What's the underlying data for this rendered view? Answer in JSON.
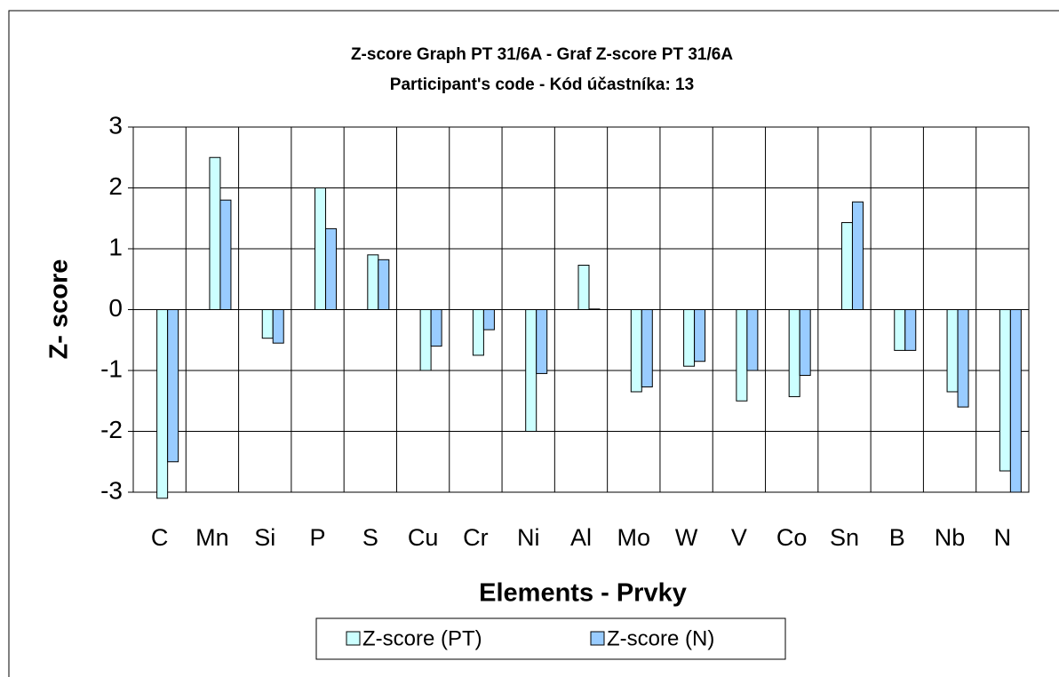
{
  "chart_data": {
    "type": "bar",
    "title": "Z-score Graph PT 31/6A - Graf Z-score PT 31/6A",
    "subtitle": "Participant's code - Kód účastníka:  13",
    "x_label": "Elements - Prvky",
    "y_label": "Z- score",
    "categories": [
      "C",
      "Mn",
      "Si",
      "P",
      "S",
      "Cu",
      "Cr",
      "Ni",
      "Al",
      "Mo",
      "W",
      "V",
      "Co",
      "Sn",
      "B",
      "Nb",
      "N"
    ],
    "series": [
      {
        "name": "Z-score (PT)",
        "color": "#ccffff",
        "values": [
          -3.1,
          2.5,
          -0.47,
          2.0,
          0.9,
          -1.0,
          -0.75,
          -2.0,
          0.73,
          -1.35,
          -0.93,
          -1.5,
          -1.43,
          1.43,
          -0.67,
          -1.35,
          -2.65
        ]
      },
      {
        "name": "Z-score (N)",
        "color": "#99ccff",
        "values": [
          -2.5,
          1.8,
          -0.55,
          1.33,
          0.82,
          -0.6,
          -0.33,
          -1.05,
          0.01,
          -1.27,
          -0.85,
          -1.0,
          -1.08,
          1.77,
          -0.67,
          -1.6,
          -3.0
        ]
      }
    ],
    "ylim": [
      -3,
      3
    ],
    "yticks": [
      -3,
      -2,
      -1,
      0,
      1,
      2,
      3
    ],
    "grid": true,
    "legend": "bottom"
  }
}
